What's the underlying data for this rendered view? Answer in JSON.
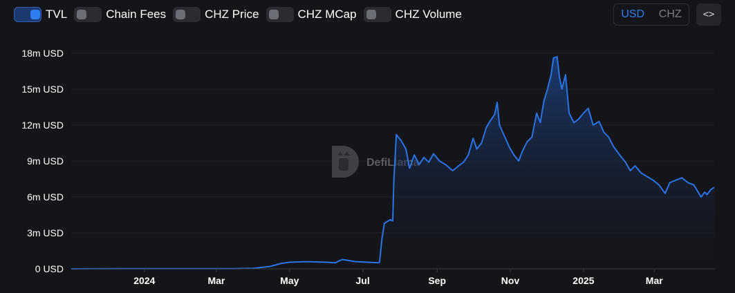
{
  "toggles": [
    {
      "label": "TVL",
      "on": true
    },
    {
      "label": "Chain Fees",
      "on": false
    },
    {
      "label": "CHZ Price",
      "on": false
    },
    {
      "label": "CHZ MCap",
      "on": false
    },
    {
      "label": "CHZ Volume",
      "on": false
    }
  ],
  "currency": {
    "usd_label": "USD",
    "chz_label": "CHZ",
    "selected": "USD"
  },
  "embed_label": "<>",
  "watermark": {
    "text": "DefiLlama"
  },
  "colors": {
    "accent": "#2f7bf0",
    "line": "#2b74e8",
    "background": "#141519"
  },
  "chart_data": {
    "type": "area",
    "series": [
      {
        "name": "TVL",
        "points": [
          [
            "2023-11-01",
            0.0
          ],
          [
            "2023-12-15",
            0.01
          ],
          [
            "2024-02-01",
            0.01
          ],
          [
            "2024-03-15",
            0.02
          ],
          [
            "2024-04-01",
            0.04
          ],
          [
            "2024-04-15",
            0.2
          ],
          [
            "2024-04-24",
            0.45
          ],
          [
            "2024-05-01",
            0.55
          ],
          [
            "2024-05-15",
            0.6
          ],
          [
            "2024-06-01",
            0.55
          ],
          [
            "2024-06-08",
            0.5
          ],
          [
            "2024-06-14",
            0.78
          ],
          [
            "2024-06-25",
            0.6
          ],
          [
            "2024-07-05",
            0.55
          ],
          [
            "2024-07-14",
            0.5
          ],
          [
            "2024-07-15",
            0.55
          ],
          [
            "2024-07-17",
            2.5
          ],
          [
            "2024-07-19",
            3.8
          ],
          [
            "2024-07-24",
            4.1
          ],
          [
            "2024-07-26",
            4.0
          ],
          [
            "2024-07-27",
            7.5
          ],
          [
            "2024-07-29",
            11.2
          ],
          [
            "2024-08-02",
            10.7
          ],
          [
            "2024-08-06",
            10.0
          ],
          [
            "2024-08-09",
            8.4
          ],
          [
            "2024-08-13",
            9.5
          ],
          [
            "2024-08-17",
            8.7
          ],
          [
            "2024-08-21",
            9.3
          ],
          [
            "2024-08-25",
            8.9
          ],
          [
            "2024-08-29",
            9.6
          ],
          [
            "2024-09-03",
            9.0
          ],
          [
            "2024-09-08",
            8.7
          ],
          [
            "2024-09-14",
            8.2
          ],
          [
            "2024-09-19",
            8.6
          ],
          [
            "2024-09-23",
            8.9
          ],
          [
            "2024-09-27",
            9.5
          ],
          [
            "2024-10-01",
            10.9
          ],
          [
            "2024-10-04",
            10.0
          ],
          [
            "2024-10-08",
            10.5
          ],
          [
            "2024-10-12",
            11.8
          ],
          [
            "2024-10-15",
            12.3
          ],
          [
            "2024-10-19",
            12.9
          ],
          [
            "2024-10-21",
            13.9
          ],
          [
            "2024-10-23",
            12.0
          ],
          [
            "2024-10-27",
            11.1
          ],
          [
            "2024-10-31",
            10.2
          ],
          [
            "2024-11-04",
            9.5
          ],
          [
            "2024-11-08",
            9.0
          ],
          [
            "2024-11-11",
            9.8
          ],
          [
            "2024-11-15",
            10.6
          ],
          [
            "2024-11-19",
            11.0
          ],
          [
            "2024-11-23",
            13.0
          ],
          [
            "2024-11-26",
            12.2
          ],
          [
            "2024-11-29",
            14.0
          ],
          [
            "2024-12-02",
            15.0
          ],
          [
            "2024-12-05",
            16.2
          ],
          [
            "2024-12-07",
            17.6
          ],
          [
            "2024-12-10",
            17.7
          ],
          [
            "2024-12-12",
            16.0
          ],
          [
            "2024-12-14",
            15.0
          ],
          [
            "2024-12-17",
            16.2
          ],
          [
            "2024-12-20",
            13.0
          ],
          [
            "2024-12-24",
            12.2
          ],
          [
            "2024-12-28",
            12.5
          ],
          [
            "2025-01-01",
            13.0
          ],
          [
            "2025-01-05",
            13.4
          ],
          [
            "2025-01-09",
            12.0
          ],
          [
            "2025-01-14",
            12.3
          ],
          [
            "2025-01-18",
            11.4
          ],
          [
            "2025-01-22",
            11.0
          ],
          [
            "2025-01-26",
            10.2
          ],
          [
            "2025-02-01",
            9.4
          ],
          [
            "2025-02-05",
            8.9
          ],
          [
            "2025-02-09",
            8.2
          ],
          [
            "2025-02-13",
            8.6
          ],
          [
            "2025-02-18",
            8.0
          ],
          [
            "2025-02-23",
            7.7
          ],
          [
            "2025-02-28",
            7.4
          ],
          [
            "2025-03-05",
            7.0
          ],
          [
            "2025-03-10",
            6.3
          ],
          [
            "2025-03-14",
            7.2
          ],
          [
            "2025-03-19",
            7.4
          ],
          [
            "2025-03-24",
            7.6
          ],
          [
            "2025-03-29",
            7.2
          ],
          [
            "2025-04-03",
            7.0
          ],
          [
            "2025-04-06",
            6.5
          ],
          [
            "2025-04-09",
            6.0
          ],
          [
            "2025-04-12",
            6.4
          ],
          [
            "2025-04-14",
            6.2
          ],
          [
            "2025-04-17",
            6.6
          ],
          [
            "2025-04-20",
            6.8
          ]
        ]
      }
    ],
    "y_ticks": [
      {
        "value": 0,
        "label": "0 USD"
      },
      {
        "value": 3,
        "label": "3m USD"
      },
      {
        "value": 6,
        "label": "6m USD"
      },
      {
        "value": 9,
        "label": "9m USD"
      },
      {
        "value": 12,
        "label": "12m USD"
      },
      {
        "value": 15,
        "label": "15m USD"
      },
      {
        "value": 18,
        "label": "18m USD"
      }
    ],
    "x_ticks": [
      {
        "date": "2024-01-01",
        "label": "2024"
      },
      {
        "date": "2024-03-01",
        "label": "Mar"
      },
      {
        "date": "2024-05-01",
        "label": "May"
      },
      {
        "date": "2024-07-01",
        "label": "Jul"
      },
      {
        "date": "2024-09-01",
        "label": "Sep"
      },
      {
        "date": "2024-11-01",
        "label": "Nov"
      },
      {
        "date": "2025-01-01",
        "label": "2025"
      },
      {
        "date": "2025-03-01",
        "label": "Mar"
      }
    ],
    "ylim": [
      0,
      18
    ],
    "y_unit": "m USD",
    "xlim": [
      "2023-11-01",
      "2025-04-20"
    ],
    "grid": true,
    "legend": "none"
  }
}
